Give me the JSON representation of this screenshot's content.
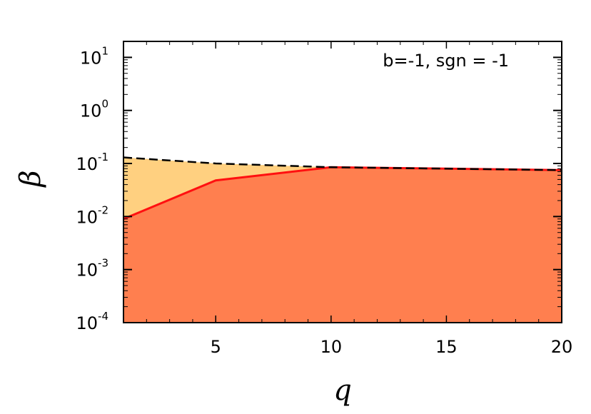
{
  "chart_data": {
    "type": "area",
    "title": "",
    "annotation": "b=-1, sgn = -1",
    "xlabel": "q",
    "ylabel": "β",
    "xlim": [
      1,
      20
    ],
    "ylim": [
      0.0001,
      20
    ],
    "yscale": "log",
    "grid": false,
    "x_ticks": [
      5,
      10,
      15,
      20
    ],
    "x_tick_labels": [
      "5",
      "10",
      "15",
      "20"
    ],
    "y_ticks": [
      0.0001,
      0.001,
      0.01,
      0.1,
      1,
      10
    ],
    "y_tick_labels": [
      {
        "base": "10",
        "exp": "-4"
      },
      {
        "base": "10",
        "exp": "-3"
      },
      {
        "base": "10",
        "exp": "-2"
      },
      {
        "base": "10",
        "exp": "-1"
      },
      {
        "base": "10",
        "exp": "0"
      },
      {
        "base": "10",
        "exp": "1"
      }
    ],
    "series": [
      {
        "x": [
          1,
          5,
          10,
          20
        ],
        "values": [
          0.13,
          0.1,
          0.085,
          0.075
        ],
        "style": "dashed",
        "color": "#000000",
        "fill": "#ffd080"
      },
      {
        "x": [
          1,
          5,
          10,
          20
        ],
        "values": [
          0.009,
          0.048,
          0.085,
          0.075
        ],
        "style": "solid",
        "color": "#ff1010",
        "fill": "#ff7f4f"
      }
    ]
  }
}
